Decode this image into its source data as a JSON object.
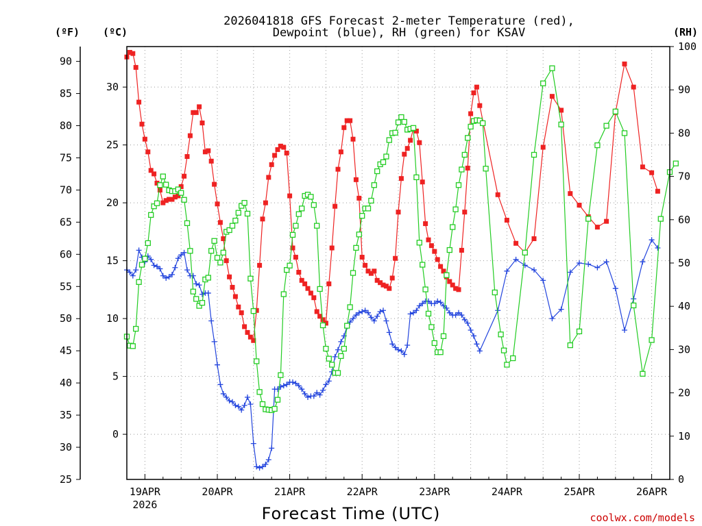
{
  "chart_data": {
    "type": "line",
    "title": [
      "2026041818 GFS Forecast 2-meter Temperature (red),",
      "Dewpoint (blue), RH (green) for KSAV"
    ],
    "xlabel": "Forecast Time (UTC)",
    "credit": "coolwx.com/models",
    "units": {
      "fahrenheit": "(ºF)",
      "celsius": "(ºC)",
      "rh": "(RH)"
    },
    "x_start_hour": 18,
    "x_range_hours": [
      18,
      198
    ],
    "x_ticks": [
      {
        "hour": 24,
        "label": "19APR",
        "sub": "2026"
      },
      {
        "hour": 48,
        "label": "20APR"
      },
      {
        "hour": 72,
        "label": "21APR"
      },
      {
        "hour": 96,
        "label": "22APR"
      },
      {
        "hour": 120,
        "label": "23APR"
      },
      {
        "hour": 144,
        "label": "24APR"
      },
      {
        "hour": 168,
        "label": "25APR"
      },
      {
        "hour": 192,
        "label": "26APR"
      }
    ],
    "yaxis_celsius": {
      "range": [
        -3.9,
        33.5
      ],
      "ticks": [
        0,
        5,
        10,
        15,
        20,
        25,
        30
      ]
    },
    "yaxis_fahrenheit": {
      "range": [
        25,
        92.3
      ],
      "ticks": [
        25,
        30,
        35,
        40,
        45,
        50,
        55,
        60,
        65,
        70,
        75,
        80,
        85,
        90
      ]
    },
    "yaxis_rh": {
      "range": [
        0,
        100
      ],
      "ticks": [
        0,
        10,
        20,
        30,
        40,
        50,
        60,
        70,
        80,
        90,
        100
      ]
    },
    "series": [
      {
        "name": "Temperature",
        "unit": "C",
        "color": "#ee2222",
        "marker": "square-filled",
        "step_hours": 1,
        "values": [
          32.6,
          33.0,
          32.9,
          31.7,
          28.7,
          26.8,
          25.5,
          24.4,
          22.8,
          22.5,
          21.7,
          21.1,
          20.0,
          20.2,
          20.3,
          20.3,
          20.5,
          20.6,
          21.4,
          22.3,
          24.0,
          25.8,
          27.8,
          27.8,
          28.3,
          26.9,
          24.4,
          24.5,
          23.6,
          21.6,
          19.9,
          18.3,
          16.9,
          15.0,
          13.6,
          12.7,
          11.9,
          11.0,
          10.5,
          9.3,
          8.8,
          8.4,
          8.1,
          10.7,
          14.6,
          18.6,
          20.0,
          22.2,
          23.3,
          24.1,
          24.6,
          24.9,
          24.8,
          24.3,
          20.6,
          16.1,
          15.3,
          14.0,
          13.3,
          13.0,
          12.6,
          12.2,
          11.8,
          10.6,
          10.2,
          9.9,
          9.6,
          13.0,
          16.1,
          19.7,
          22.9,
          24.4,
          26.5,
          27.1,
          27.1,
          25.5,
          22.0,
          20.4,
          15.3,
          14.6,
          14.1,
          13.9,
          14.1,
          13.3,
          13.1,
          12.9,
          12.8,
          12.6,
          13.5,
          15.2,
          19.2,
          22.1,
          24.2,
          24.7,
          25.4,
          26.4,
          26.2,
          25.2,
          21.8,
          18.2,
          16.8,
          16.3,
          15.8,
          15.1,
          14.5,
          14.1,
          13.6,
          13.2,
          12.9,
          12.6,
          12.5,
          15.9,
          19.2,
          23.0,
          27.7,
          29.5,
          30.0,
          28.4
        ],
        "sparse": [
          [
            141,
            20.7
          ],
          [
            144,
            18.5
          ],
          [
            147,
            16.5
          ],
          [
            150,
            15.7
          ],
          [
            153,
            16.9
          ],
          [
            156,
            24.8
          ],
          [
            159,
            29.2
          ],
          [
            162,
            28.0
          ],
          [
            165,
            20.8
          ],
          [
            168,
            19.8
          ],
          [
            171,
            18.8
          ],
          [
            174,
            17.9
          ],
          [
            177,
            18.4
          ],
          [
            180,
            27.8
          ],
          [
            183,
            32.0
          ],
          [
            186,
            30.0
          ],
          [
            189,
            23.1
          ],
          [
            192,
            22.6
          ],
          [
            194,
            21.0
          ]
        ]
      },
      {
        "name": "Dewpoint",
        "unit": "C",
        "color": "#2244dd",
        "marker": "plus",
        "step_hours": 1,
        "values": [
          14.2,
          14.0,
          13.7,
          14.2,
          15.9,
          15.3,
          14.9,
          15.4,
          15.1,
          14.6,
          14.5,
          14.3,
          13.7,
          13.5,
          13.6,
          13.8,
          14.4,
          15.2,
          15.5,
          15.7,
          14.2,
          13.7,
          13.7,
          13.0,
          12.9,
          12.1,
          12.2,
          12.2,
          9.8,
          8.0,
          6.0,
          4.3,
          3.5,
          3.2,
          2.9,
          2.8,
          2.5,
          2.4,
          2.1,
          2.5,
          3.2,
          2.6,
          -0.8,
          -2.8,
          -2.9,
          -2.8,
          -2.6,
          -2.2,
          -1.2,
          3.9,
          3.9,
          4.1,
          4.2,
          4.3,
          4.5,
          4.5,
          4.4,
          4.2,
          3.9,
          3.5,
          3.2,
          3.3,
          3.3,
          3.6,
          3.4,
          3.8,
          4.3,
          4.6,
          5.4,
          6.7,
          7.3,
          8.0,
          8.5,
          9.3,
          9.7,
          10.0,
          10.3,
          10.5,
          10.6,
          10.7,
          10.5,
          10.1,
          9.8,
          10.2,
          10.6,
          10.7,
          9.8,
          8.8,
          7.8,
          7.5,
          7.3,
          7.2,
          6.9,
          7.7,
          10.4,
          10.5,
          10.7,
          11.1,
          11.3,
          11.5,
          11.5,
          11.3,
          11.3,
          11.5,
          11.4,
          11.1,
          10.9,
          10.5,
          10.3,
          10.3,
          10.5,
          10.3,
          9.9,
          9.6,
          9.0,
          8.5,
          7.8,
          7.2
        ],
        "sparse": [
          [
            141,
            10.7
          ],
          [
            144,
            14.1
          ],
          [
            147,
            15.1
          ],
          [
            150,
            14.6
          ],
          [
            153,
            14.2
          ],
          [
            156,
            13.3
          ],
          [
            159,
            10.0
          ],
          [
            162,
            10.8
          ],
          [
            165,
            14.0
          ],
          [
            168,
            14.8
          ],
          [
            171,
            14.7
          ],
          [
            174,
            14.4
          ],
          [
            177,
            14.9
          ],
          [
            180,
            12.6
          ],
          [
            183,
            9.0
          ],
          [
            186,
            11.7
          ],
          [
            189,
            14.9
          ],
          [
            192,
            16.8
          ],
          [
            194,
            16.1
          ]
        ]
      },
      {
        "name": "RH",
        "unit": "%",
        "color": "#22cc22",
        "marker": "square-open",
        "step_hours": 1,
        "values": [
          33.0,
          30.9,
          30.8,
          34.8,
          45.6,
          49.6,
          51.0,
          54.6,
          61.1,
          63.1,
          63.8,
          68.0,
          70.0,
          68.1,
          66.8,
          66.6,
          66.6,
          67.0,
          66.2,
          64.6,
          59.2,
          52.8,
          43.4,
          41.7,
          40.1,
          40.8,
          46.2,
          46.6,
          52.8,
          55.1,
          51.2,
          50.1,
          52.4,
          57.2,
          57.6,
          58.6,
          59.8,
          61.6,
          63.2,
          63.9,
          61.4,
          46.4,
          38.9,
          27.3,
          20.2,
          17.4,
          16.2,
          16.1,
          16.0,
          16.3,
          18.4,
          24.1,
          42.8,
          48.4,
          49.4,
          56.5,
          58.6,
          61.3,
          62.6,
          65.5,
          65.8,
          65.3,
          63.4,
          58.6,
          44.0,
          35.6,
          30.2,
          27.9,
          26.5,
          24.6,
          24.6,
          28.5,
          30.2,
          35.5,
          39.8,
          47.7,
          53.5,
          56.6,
          60.9,
          62.6,
          62.6,
          64.4,
          68.0,
          71.2,
          72.8,
          73.3,
          74.6,
          78.4,
          80.0,
          80.1,
          82.5,
          83.7,
          82.6,
          80.8,
          81.0,
          81.2,
          69.8,
          54.7,
          49.6,
          43.9,
          38.3,
          35.2,
          31.5,
          29.4,
          29.4,
          33.1,
          47.2,
          53.0,
          58.3,
          62.4,
          68.0,
          71.6,
          75.0,
          78.9,
          81.5,
          82.8,
          83.0,
          82.9,
          82.3,
          71.8
        ],
        "sparse": [
          [
            140,
            43.2
          ],
          [
            142,
            33.5
          ],
          [
            143,
            29.8
          ],
          [
            144,
            26.5
          ],
          [
            146,
            28.0
          ],
          [
            150,
            52.4
          ],
          [
            153,
            75.0
          ],
          [
            156,
            91.5
          ],
          [
            159,
            95.0
          ],
          [
            162,
            82.0
          ],
          [
            165,
            31.0
          ],
          [
            168,
            34.2
          ],
          [
            171,
            60.2
          ],
          [
            174,
            77.2
          ],
          [
            177,
            81.7
          ],
          [
            180,
            85.0
          ],
          [
            183,
            80.0
          ],
          [
            186,
            40.2
          ],
          [
            189,
            24.4
          ],
          [
            192,
            32.2
          ],
          [
            195,
            60.2
          ],
          [
            198,
            71.0
          ],
          [
            200,
            73.0
          ]
        ]
      }
    ]
  }
}
